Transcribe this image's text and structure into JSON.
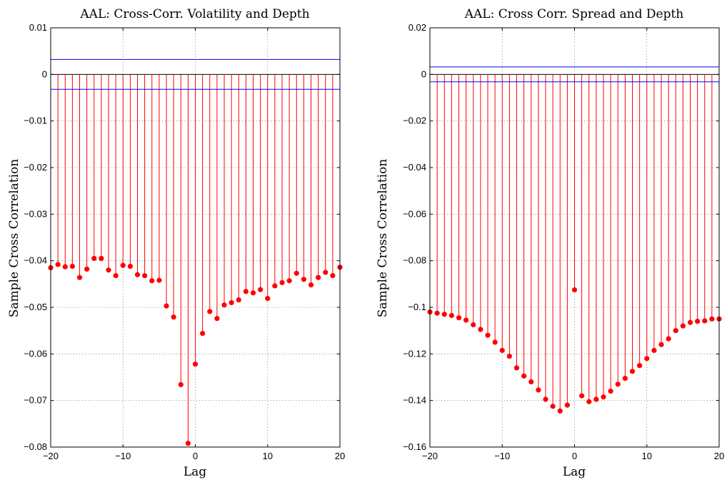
{
  "chart_data": [
    {
      "type": "stem",
      "title": "AAL: Cross-Corr. Volatility and Depth",
      "xlabel": "Lag",
      "ylabel": "Sample Cross Correlation",
      "xlim": [
        -20,
        20
      ],
      "ylim": [
        -0.08,
        0.01
      ],
      "xticks": [
        -20,
        -10,
        0,
        10,
        20
      ],
      "xtick_labels": [
        "−20",
        "−10",
        "0",
        "10",
        "20"
      ],
      "yticks": [
        0.01,
        0,
        -0.01,
        -0.02,
        -0.03,
        -0.04,
        -0.05,
        -0.06,
        -0.07,
        -0.08
      ],
      "ytick_labels": [
        "0.01",
        "0",
        "−0.01",
        "−0.02",
        "−0.03",
        "−0.04",
        "−0.05",
        "−0.06",
        "−0.07",
        "−0.08"
      ],
      "grid": "dotted",
      "stem_color": "#ff0000",
      "bound_color": "#0000ff",
      "confidence_bounds": [
        0.0032,
        -0.0032
      ],
      "x": [
        -20,
        -19,
        -18,
        -17,
        -16,
        -15,
        -14,
        -13,
        -12,
        -11,
        -10,
        -9,
        -8,
        -7,
        -6,
        -5,
        -4,
        -3,
        -2,
        -1,
        0,
        1,
        2,
        3,
        4,
        5,
        6,
        7,
        8,
        9,
        10,
        11,
        12,
        13,
        14,
        15,
        16,
        17,
        18,
        19,
        20
      ],
      "values": [
        -0.0415,
        -0.0408,
        -0.0413,
        -0.0412,
        -0.0436,
        -0.0418,
        -0.0395,
        -0.0395,
        -0.042,
        -0.0432,
        -0.041,
        -0.0412,
        -0.043,
        -0.0432,
        -0.0443,
        -0.0442,
        -0.0497,
        -0.0521,
        -0.0666,
        -0.0792,
        -0.0622,
        -0.0556,
        -0.0509,
        -0.0524,
        -0.0495,
        -0.049,
        -0.0484,
        -0.0466,
        -0.0469,
        -0.0462,
        -0.0481,
        -0.0454,
        -0.0447,
        -0.0443,
        -0.0427,
        -0.044,
        -0.0452,
        -0.0436,
        -0.0425,
        -0.0432,
        -0.0414
      ]
    },
    {
      "type": "stem",
      "title": "AAL: Cross Corr. Spread and Depth",
      "xlabel": "Lag",
      "ylabel": "Sample Cross Correlation",
      "xlim": [
        -20,
        20
      ],
      "ylim": [
        -0.16,
        0.02
      ],
      "xticks": [
        -20,
        -10,
        0,
        10,
        20
      ],
      "xtick_labels": [
        "−20",
        "−10",
        "0",
        "10",
        "20"
      ],
      "yticks": [
        0.02,
        0,
        -0.02,
        -0.04,
        -0.06,
        -0.08,
        -0.1,
        -0.12,
        -0.14,
        -0.16
      ],
      "ytick_labels": [
        "0.02",
        "0",
        "−0.02",
        "−0.04",
        "−0.06",
        "−0.08",
        "−0.1",
        "−0.12",
        "−0.14",
        "−0.16"
      ],
      "grid": "dotted",
      "stem_color": "#ff0000",
      "bound_color": "#0000ff",
      "confidence_bounds": [
        0.0032,
        -0.0032
      ],
      "x": [
        -20,
        -19,
        -18,
        -17,
        -16,
        -15,
        -14,
        -13,
        -12,
        -11,
        -10,
        -9,
        -8,
        -7,
        -6,
        -5,
        -4,
        -3,
        -2,
        -1,
        0,
        1,
        2,
        3,
        4,
        5,
        6,
        7,
        8,
        9,
        10,
        11,
        12,
        13,
        14,
        15,
        16,
        17,
        18,
        19,
        20
      ],
      "values": [
        -0.102,
        -0.1025,
        -0.103,
        -0.1035,
        -0.1045,
        -0.1055,
        -0.1075,
        -0.1095,
        -0.112,
        -0.115,
        -0.1185,
        -0.121,
        -0.126,
        -0.1295,
        -0.132,
        -0.1355,
        -0.1395,
        -0.1425,
        -0.1445,
        -0.142,
        -0.0925,
        -0.138,
        -0.1405,
        -0.1395,
        -0.1385,
        -0.136,
        -0.133,
        -0.1305,
        -0.1275,
        -0.125,
        -0.122,
        -0.1185,
        -0.116,
        -0.1135,
        -0.11,
        -0.108,
        -0.1065,
        -0.106,
        -0.1058,
        -0.105,
        -0.105
      ]
    }
  ]
}
